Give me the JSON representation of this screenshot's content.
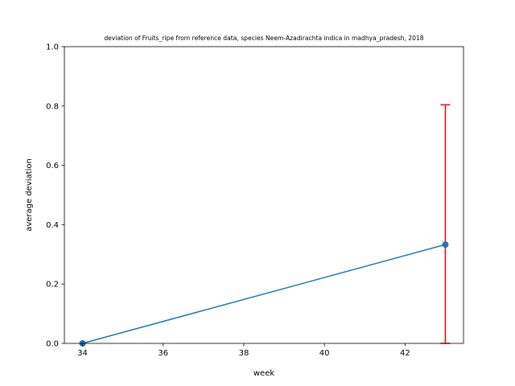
{
  "chart_data": {
    "type": "line",
    "title": "deviation of Fruits_ripe from reference data, species Neem-Azadirachta indica in madhya_pradesh, 2018",
    "xlabel": "week",
    "ylabel": "average deviation",
    "xlim": [
      33.55,
      43.45
    ],
    "ylim": [
      0,
      1.0
    ],
    "xticks": [
      34,
      36,
      38,
      40,
      42
    ],
    "yticks": [
      0.0,
      0.2,
      0.4,
      0.6,
      0.8,
      1.0
    ],
    "xtick_labels": [
      "34",
      "36",
      "38",
      "40",
      "42"
    ],
    "ytick_labels": [
      "0.0",
      "0.2",
      "0.4",
      "0.6",
      "0.8",
      "1.0"
    ],
    "grid": false,
    "series": [
      {
        "x": [
          34,
          43
        ],
        "y": [
          0.0,
          0.333
        ],
        "error_low": [
          0.0,
          0.333
        ],
        "error_high": [
          0.0,
          0.471
        ],
        "color": "#1f77b4",
        "error_color": "#ff0000"
      }
    ]
  }
}
